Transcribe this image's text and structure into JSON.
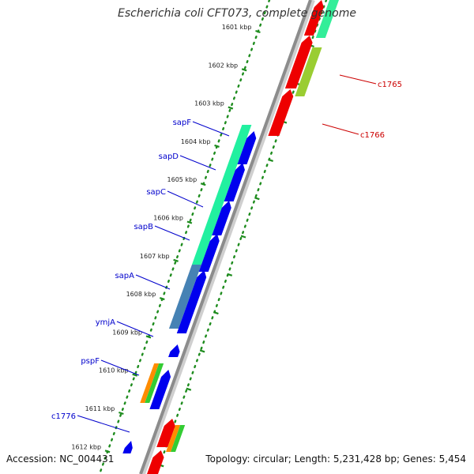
{
  "title": "Escherichia coli CFT073, complete genome",
  "footer": {
    "accession": "Accession: NC_004431",
    "topology": "Topology: circular; Length: 5,231,428 bp; Genes: 5,454"
  },
  "colors": {
    "backbone": "#8c8c8c",
    "tick": "#1e8c1e",
    "plus_label": "#0000cc",
    "minus_label": "#cc0000"
  },
  "ticks": [
    {
      "kbp": 1601,
      "label": "1601 kbp"
    },
    {
      "kbp": 1602,
      "label": "1602 kbp"
    },
    {
      "kbp": 1603,
      "label": "1603 kbp"
    },
    {
      "kbp": 1604,
      "label": "1604 kbp"
    },
    {
      "kbp": 1605,
      "label": "1605 kbp"
    },
    {
      "kbp": 1606,
      "label": "1606 kbp"
    },
    {
      "kbp": 1607,
      "label": "1607 kbp"
    },
    {
      "kbp": 1608,
      "label": "1608 kbp"
    },
    {
      "kbp": 1609,
      "label": "1609 kbp"
    },
    {
      "kbp": 1610,
      "label": "1610 kbp"
    },
    {
      "kbp": 1611,
      "label": "1611 kbp"
    },
    {
      "kbp": 1612,
      "label": "1612 kbp"
    }
  ],
  "gene_labels": [
    {
      "name": "c1765",
      "strand": "minus"
    },
    {
      "name": "c1766",
      "strand": "minus"
    },
    {
      "name": "sapF",
      "strand": "plus"
    },
    {
      "name": "sapD",
      "strand": "plus"
    },
    {
      "name": "sapC",
      "strand": "plus"
    },
    {
      "name": "sapB",
      "strand": "plus"
    },
    {
      "name": "sapA",
      "strand": "plus"
    },
    {
      "name": "ymjA",
      "strand": "plus"
    },
    {
      "name": "pspF",
      "strand": "plus"
    },
    {
      "name": "c1776",
      "strand": "plus"
    }
  ]
}
